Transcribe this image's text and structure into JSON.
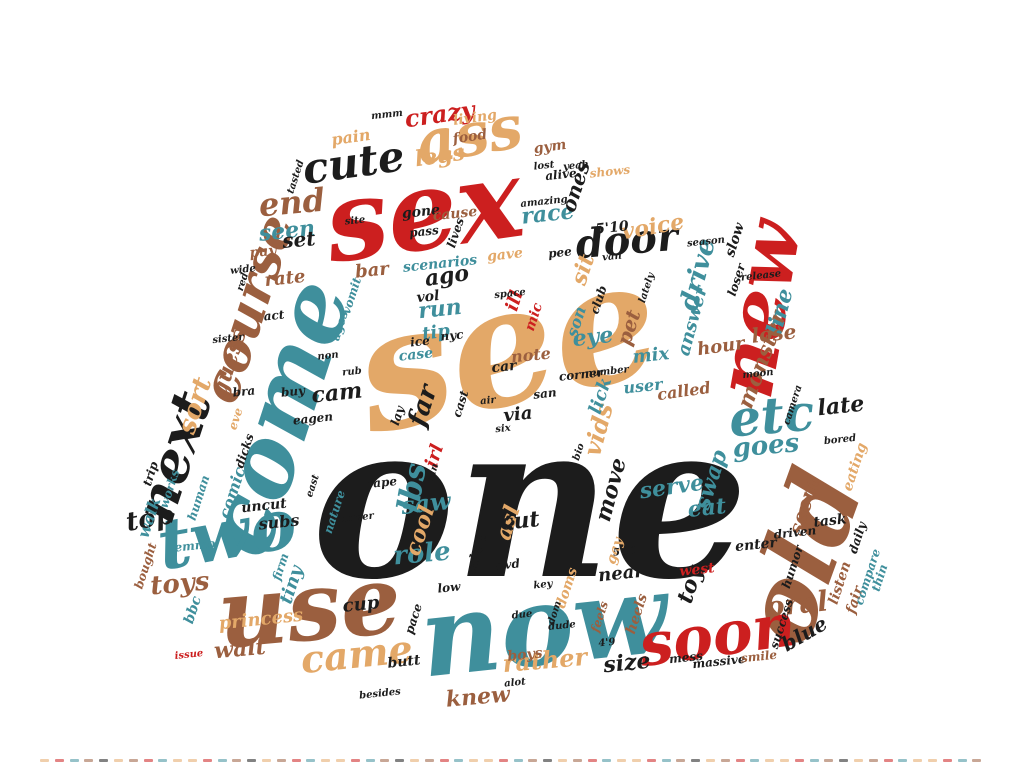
{
  "palette": {
    "black": "#1c1c1c",
    "tan": "#e3a868",
    "red": "#cc1f1f",
    "teal": "#3f8f9c",
    "brown": "#9b5f3f",
    "background": "#ffffff"
  },
  "words": [
    {
      "text": "one",
      "color": "black",
      "rank": 1
    },
    {
      "text": "see",
      "color": "tan",
      "rank": 2
    },
    {
      "text": "sex",
      "color": "red",
      "rank": 3
    },
    {
      "text": "now",
      "color": "teal",
      "rank": 4
    },
    {
      "text": "use",
      "color": "brown",
      "rank": 5
    },
    {
      "text": "old",
      "color": "brown",
      "rank": 6
    },
    {
      "text": "come",
      "color": "teal",
      "rank": 7
    },
    {
      "text": "new",
      "color": "red",
      "rank": 8
    },
    {
      "text": "two",
      "color": "teal",
      "rank": 9
    },
    {
      "text": "soon",
      "color": "red",
      "rank": 10
    },
    {
      "text": "next",
      "color": "black",
      "rank": 11
    },
    {
      "text": "ass",
      "color": "tan",
      "rank": 12
    },
    {
      "text": "course",
      "color": "brown",
      "rank": 13
    },
    {
      "text": "etc",
      "color": "teal",
      "rank": 14
    },
    {
      "text": "cute",
      "color": "black",
      "rank": 15
    },
    {
      "text": "door",
      "color": "black",
      "rank": 16
    },
    {
      "text": "came",
      "color": "tan",
      "rank": 17
    },
    {
      "text": "crazy",
      "color": "red",
      "rank": 18
    },
    {
      "text": "end",
      "color": "brown",
      "rank": 19
    },
    {
      "text": "oral",
      "color": "brown",
      "rank": 20
    },
    {
      "text": "goes",
      "color": "teal",
      "rank": 21
    },
    {
      "text": "drive",
      "color": "teal",
      "rank": 22
    },
    {
      "text": "rather",
      "color": "tan",
      "rank": 23
    },
    {
      "text": "role",
      "color": "teal",
      "rank": 24
    },
    {
      "text": "toys",
      "color": "brown",
      "rank": 25
    },
    {
      "text": "knew",
      "color": "brown",
      "rank": 26
    },
    {
      "text": "sort",
      "color": "tan",
      "rank": 27
    },
    {
      "text": "vids",
      "color": "tan",
      "rank": 28
    },
    {
      "text": "race",
      "color": "teal",
      "rank": 29
    },
    {
      "text": "legs",
      "color": "tan",
      "rank": 30
    },
    {
      "text": "seen",
      "color": "teal",
      "rank": 31
    },
    {
      "text": "voice",
      "color": "tan",
      "rank": 32
    },
    {
      "text": "lbs",
      "color": "teal",
      "rank": 33
    },
    {
      "text": "move",
      "color": "black",
      "rank": 34
    },
    {
      "text": "ago",
      "color": "black",
      "rank": 35
    },
    {
      "text": "monster",
      "color": "brown",
      "rank": 36
    },
    {
      "text": "guess",
      "color": "brown",
      "rank": 37
    },
    {
      "text": "top",
      "color": "black",
      "rank": 38
    },
    {
      "text": "line",
      "color": "teal",
      "rank": 39
    },
    {
      "text": "answer",
      "color": "teal",
      "rank": 40
    },
    {
      "text": "eye",
      "color": "teal",
      "rank": 41
    },
    {
      "text": "saw",
      "color": "teal",
      "rank": 42
    },
    {
      "text": "cool",
      "color": "tan",
      "rank": 43
    },
    {
      "text": "swap",
      "color": "teal",
      "rank": 44
    },
    {
      "text": "late",
      "color": "black",
      "rank": 45
    },
    {
      "text": "eat",
      "color": "teal",
      "rank": 46
    },
    {
      "text": "cam",
      "color": "black",
      "rank": 47
    },
    {
      "text": "set",
      "color": "black",
      "rank": 48
    },
    {
      "text": "far",
      "color": "black",
      "rank": 49
    },
    {
      "text": "run",
      "color": "teal",
      "rank": 50
    },
    {
      "text": "sit",
      "color": "tan",
      "rank": 51
    },
    {
      "text": "pet",
      "color": "brown",
      "rank": 52
    },
    {
      "text": "wait",
      "color": "brown",
      "rank": 53
    },
    {
      "text": "asl",
      "color": "tan",
      "rank": 54
    },
    {
      "text": "cut",
      "color": "black",
      "rank": 55
    },
    {
      "text": "size",
      "color": "black",
      "rank": 56
    },
    {
      "text": "toy",
      "color": "black",
      "rank": 57
    },
    {
      "text": "blue",
      "color": "black",
      "rank": 58
    },
    {
      "text": "serve",
      "color": "teal",
      "rank": 59
    },
    {
      "text": "lose",
      "color": "brown",
      "rank": 60
    },
    {
      "text": "seem",
      "color": "brown",
      "rank": 61
    },
    {
      "text": "hour",
      "color": "brown",
      "rank": 62
    },
    {
      "text": "tip",
      "color": "teal",
      "rank": 63
    },
    {
      "text": "ones",
      "color": "black",
      "rank": 64
    },
    {
      "text": "pain",
      "color": "tan",
      "rank": 65
    },
    {
      "text": "bar",
      "color": "brown",
      "rank": 66
    },
    {
      "text": "rate",
      "color": "brown",
      "rank": 67
    },
    {
      "text": "tiny",
      "color": "teal",
      "rank": 68
    },
    {
      "text": "cup",
      "color": "black",
      "rank": 69
    },
    {
      "text": "near",
      "color": "black",
      "rank": 70
    },
    {
      "text": "mix",
      "color": "teal",
      "rank": 71
    },
    {
      "text": "via",
      "color": "black",
      "rank": 72
    },
    {
      "text": "lick",
      "color": "teal",
      "rank": 73
    },
    {
      "text": "irl",
      "color": "red",
      "rank": 74
    },
    {
      "text": "son",
      "color": "teal",
      "rank": 75
    },
    {
      "text": "ill",
      "color": "red",
      "rank": 76
    },
    {
      "text": "note",
      "color": "brown",
      "rank": 77
    },
    {
      "text": "user",
      "color": "teal",
      "rank": 78
    },
    {
      "text": "called",
      "color": "brown",
      "rank": 79
    },
    {
      "text": "comic",
      "color": "teal",
      "rank": 80
    },
    {
      "text": "subs",
      "color": "black",
      "rank": 81
    },
    {
      "text": "walk",
      "color": "teal",
      "rank": 82
    },
    {
      "text": "princess",
      "color": "tan",
      "rank": 83
    },
    {
      "text": "living",
      "color": "tan",
      "rank": 84
    },
    {
      "text": "food",
      "color": "brown",
      "rank": 85
    },
    {
      "text": "gym",
      "color": "brown",
      "rank": 86
    },
    {
      "text": "gone",
      "color": "black",
      "rank": 87
    },
    {
      "text": "cause",
      "color": "brown",
      "rank": 88
    },
    {
      "text": "pay",
      "color": "brown",
      "rank": 89
    },
    {
      "text": "scenarios",
      "color": "teal",
      "rank": 90
    },
    {
      "text": "slow",
      "color": "black",
      "rank": 91
    },
    {
      "text": "vol",
      "color": "black",
      "rank": 92
    },
    {
      "text": "gave",
      "color": "tan",
      "rank": 93
    },
    {
      "text": "mic",
      "color": "red",
      "rank": 94
    },
    {
      "text": "ice",
      "color": "black",
      "rank": 95
    },
    {
      "text": "case",
      "color": "teal",
      "rank": 96
    },
    {
      "text": "car",
      "color": "black",
      "rank": 97
    },
    {
      "text": "uncut",
      "color": "black",
      "rank": 98
    },
    {
      "text": "bbc",
      "color": "teal",
      "rank": 99
    },
    {
      "text": "adult",
      "color": "black",
      "rank": 100
    },
    {
      "text": "boys",
      "color": "brown",
      "rank": 101
    },
    {
      "text": "butt",
      "color": "black",
      "rank": 102
    },
    {
      "text": "west",
      "color": "red",
      "rank": 103
    },
    {
      "text": "fair",
      "color": "brown",
      "rank": 104
    },
    {
      "text": "listen",
      "color": "brown",
      "rank": 105
    },
    {
      "text": "task",
      "color": "black",
      "rank": 106
    },
    {
      "text": "eating",
      "color": "tan",
      "rank": 107
    },
    {
      "text": "enter",
      "color": "black",
      "rank": 108
    },
    {
      "text": "massive",
      "color": "black",
      "rank": 109
    },
    {
      "text": "mess",
      "color": "black",
      "rank": 110
    },
    {
      "text": "doms",
      "color": "tan",
      "rank": 111
    },
    {
      "text": "5'10",
      "color": "black",
      "rank": 112
    },
    {
      "text": "alive",
      "color": "black",
      "rank": 113
    },
    {
      "text": "shows",
      "color": "tan",
      "rank": 114
    },
    {
      "text": "pass",
      "color": "black",
      "rank": 115
    },
    {
      "text": "pee",
      "color": "black",
      "rank": 116
    },
    {
      "text": "trip",
      "color": "black",
      "rank": 117
    },
    {
      "text": "eagen",
      "color": "black",
      "rank": 118
    },
    {
      "text": "heels",
      "color": "brown",
      "rank": 119
    },
    {
      "text": "driven",
      "color": "black",
      "rank": 120
    },
    {
      "text": "success",
      "color": "black",
      "rank": 121
    },
    {
      "text": "compare",
      "color": "teal",
      "rank": 122
    },
    {
      "text": "daily",
      "color": "black",
      "rank": 123
    },
    {
      "text": "humor",
      "color": "black",
      "rank": 124
    },
    {
      "text": "thin",
      "color": "teal",
      "rank": 125
    },
    {
      "text": "smile",
      "color": "brown",
      "rank": 126
    },
    {
      "text": "emmo",
      "color": "teal",
      "rank": 127
    },
    {
      "text": "bought",
      "color": "brown",
      "rank": 128
    },
    {
      "text": "human",
      "color": "teal",
      "rank": 129
    },
    {
      "text": "works",
      "color": "teal",
      "rank": 130
    },
    {
      "text": "eve",
      "color": "tan",
      "rank": 131
    },
    {
      "text": "issue",
      "color": "red",
      "rank": 132
    },
    {
      "text": "besides",
      "color": "black",
      "rank": 133
    },
    {
      "text": "career",
      "color": "black",
      "rank": 134
    },
    {
      "text": "east",
      "color": "black",
      "rank": 135
    },
    {
      "text": "firm",
      "color": "teal",
      "rank": 136
    },
    {
      "text": "nature",
      "color": "teal",
      "rank": 137
    },
    {
      "text": "nyc",
      "color": "black",
      "rank": 138
    },
    {
      "text": "san",
      "color": "black",
      "rank": 139
    },
    {
      "text": "gay",
      "color": "tan",
      "rank": 140
    },
    {
      "text": "low",
      "color": "black",
      "rank": 141
    },
    {
      "text": "feels",
      "color": "brown",
      "rank": 142
    },
    {
      "text": "ages",
      "color": "teal",
      "rank": 143
    },
    {
      "text": "vomit",
      "color": "teal",
      "rank": 144
    },
    {
      "text": "act",
      "color": "black",
      "rank": 145
    },
    {
      "text": "buy",
      "color": "black",
      "rank": 146
    },
    {
      "text": "rape",
      "color": "black",
      "rank": 147
    },
    {
      "text": "corner",
      "color": "black",
      "rank": 148
    },
    {
      "text": "dvd",
      "color": "black",
      "rank": 149
    },
    {
      "text": "pace",
      "color": "black",
      "rank": 150
    },
    {
      "text": "bra",
      "color": "black",
      "rank": 151
    },
    {
      "text": "lay",
      "color": "black",
      "rank": 152
    },
    {
      "text": "cast",
      "color": "black",
      "rank": 153
    },
    {
      "text": "dicks",
      "color": "black",
      "rank": 154
    },
    {
      "text": "rub",
      "color": "black",
      "rank": 155
    },
    {
      "text": "non",
      "color": "black",
      "rank": 156
    },
    {
      "text": "sister",
      "color": "black",
      "rank": 157
    },
    {
      "text": "dude",
      "color": "black",
      "rank": 158
    },
    {
      "text": "alot",
      "color": "black",
      "rank": 159
    },
    {
      "text": "key",
      "color": "black",
      "rank": 160
    },
    {
      "text": "5'11",
      "color": "black",
      "rank": 161
    },
    {
      "text": "4'9",
      "color": "black",
      "rank": 162
    },
    {
      "text": "due",
      "color": "black",
      "rank": 163
    },
    {
      "text": "number",
      "color": "black",
      "rank": 164
    },
    {
      "text": "moon",
      "color": "black",
      "rank": 165
    },
    {
      "text": "season",
      "color": "black",
      "rank": 166
    },
    {
      "text": "release",
      "color": "black",
      "rank": 167
    },
    {
      "text": "space",
      "color": "black",
      "rank": 168
    },
    {
      "text": "amazing",
      "color": "black",
      "rank": 169
    },
    {
      "text": "wide",
      "color": "black",
      "rank": 170
    },
    {
      "text": "site",
      "color": "black",
      "rank": 171
    },
    {
      "text": "tasted",
      "color": "black",
      "rank": 172
    },
    {
      "text": "lives",
      "color": "black",
      "rank": 173
    },
    {
      "text": "red",
      "color": "black",
      "rank": 174
    },
    {
      "text": "yeah",
      "color": "black",
      "rank": 175
    },
    {
      "text": "lost",
      "color": "black",
      "rank": 176
    },
    {
      "text": "mmm",
      "color": "black",
      "rank": 177
    },
    {
      "text": "van",
      "color": "black",
      "rank": 178
    },
    {
      "text": "ran",
      "color": "black",
      "rank": 179
    },
    {
      "text": "air",
      "color": "black",
      "rank": 180
    },
    {
      "text": "six",
      "color": "black",
      "rank": 181
    },
    {
      "text": "dom",
      "color": "black",
      "rank": 182
    },
    {
      "text": "lately",
      "color": "black",
      "rank": 183
    },
    {
      "text": "loser",
      "color": "black",
      "rank": 184
    },
    {
      "text": "club",
      "color": "black",
      "rank": 185
    },
    {
      "text": "bio",
      "color": "black",
      "rank": 186
    },
    {
      "text": "camera",
      "color": "black",
      "rank": 187
    },
    {
      "text": "bored",
      "color": "black",
      "rank": 188
    }
  ],
  "bottom_strip_colors": [
    "tan",
    "red",
    "teal",
    "brown",
    "black",
    "tan",
    "brown",
    "red",
    "teal",
    "tan"
  ]
}
